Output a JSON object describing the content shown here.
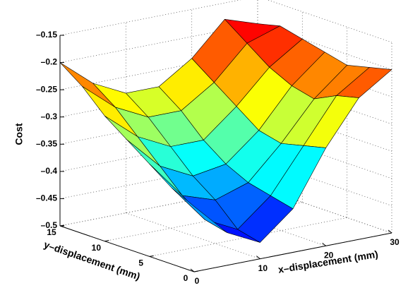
{
  "chart_data": {
    "type": "surface",
    "zlabel": "Cost",
    "xlabel": "x–displacement (mm)",
    "ylabel": "y–displacement (mm)",
    "x": [
      0,
      5,
      10,
      15,
      20,
      25,
      30
    ],
    "y": [
      0,
      2.5,
      5,
      7.5,
      10,
      12.5,
      15
    ],
    "z": [
      [
        -0.38,
        -0.44,
        -0.47,
        -0.42,
        -0.32,
        -0.24,
        -0.2
      ],
      [
        -0.36,
        -0.43,
        -0.46,
        -0.41,
        -0.33,
        -0.25,
        -0.21
      ],
      [
        -0.33,
        -0.4,
        -0.42,
        -0.4,
        -0.34,
        -0.27,
        -0.22
      ],
      [
        -0.3,
        -0.36,
        -0.39,
        -0.38,
        -0.33,
        -0.26,
        -0.21
      ],
      [
        -0.27,
        -0.32,
        -0.35,
        -0.35,
        -0.3,
        -0.24,
        -0.2
      ],
      [
        -0.23,
        -0.28,
        -0.31,
        -0.31,
        -0.27,
        -0.21,
        -0.19
      ],
      [
        -0.2,
        -0.25,
        -0.28,
        -0.28,
        -0.24,
        -0.18,
        -0.2
      ]
    ],
    "xlim": [
      0,
      30
    ],
    "ylim": [
      0,
      15
    ],
    "zlim": [
      -0.5,
      -0.15
    ],
    "xticks": [
      0,
      10,
      20,
      30
    ],
    "yticks": [
      0,
      5,
      10,
      15
    ],
    "zticks": [
      {
        "value": -0.5,
        "label": "–0.5"
      },
      {
        "value": -0.45,
        "label": "–0.45"
      },
      {
        "value": -0.4,
        "label": "–0.4"
      },
      {
        "value": -0.35,
        "label": "–0.35"
      },
      {
        "value": -0.3,
        "label": "–0.3"
      },
      {
        "value": -0.25,
        "label": "–0.25"
      },
      {
        "value": -0.2,
        "label": "–0.2"
      },
      {
        "value": -0.15,
        "label": "–0.15"
      }
    ],
    "colormap": "jet",
    "grid": true
  }
}
